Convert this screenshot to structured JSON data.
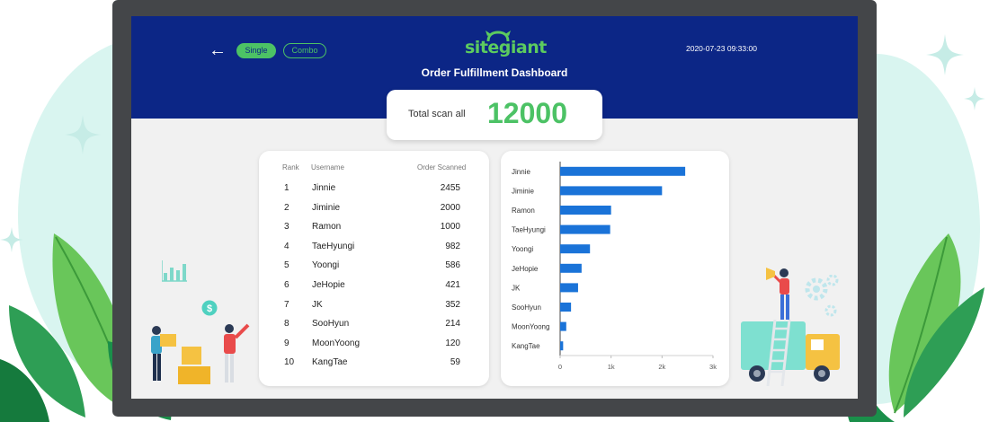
{
  "header": {
    "back_icon": "arrow-left-icon",
    "modes": [
      {
        "label": "Single",
        "active": true
      },
      {
        "label": "Combo",
        "active": false
      }
    ],
    "logo_text": "sitegiant",
    "title": "Order Fulfillment Dashboard",
    "datetime": "2020-07-23 09:33:00"
  },
  "summary": {
    "label": "Total scan all",
    "value": "12000"
  },
  "table": {
    "columns": [
      "Rank",
      "Username",
      "Order Scanned"
    ],
    "rows": [
      {
        "rank": "1",
        "username": "Jinnie",
        "count": "2455"
      },
      {
        "rank": "2",
        "username": "Jiminie",
        "count": "2000"
      },
      {
        "rank": "3",
        "username": "Ramon",
        "count": "1000"
      },
      {
        "rank": "4",
        "username": "TaeHyungi",
        "count": "982"
      },
      {
        "rank": "5",
        "username": "Yoongi",
        "count": "586"
      },
      {
        "rank": "6",
        "username": "JeHopie",
        "count": "421"
      },
      {
        "rank": "7",
        "username": "JK",
        "count": "352"
      },
      {
        "rank": "8",
        "username": "SooHyun",
        "count": "214"
      },
      {
        "rank": "9",
        "username": "MoonYoong",
        "count": "120"
      },
      {
        "rank": "10",
        "username": "KangTae",
        "count": "59"
      }
    ]
  },
  "chart_data": {
    "type": "bar",
    "orientation": "horizontal",
    "categories": [
      "Jinnie",
      "Jiminie",
      "Ramon",
      "TaeHyungi",
      "Yoongi",
      "JeHopie",
      "JK",
      "SooHyun",
      "MoonYoong",
      "KangTae"
    ],
    "values": [
      2455,
      2000,
      1000,
      982,
      586,
      421,
      352,
      214,
      120,
      59
    ],
    "xlim": [
      0,
      3000
    ],
    "xticks": [
      "0",
      "1k",
      "2k",
      "3k"
    ],
    "xtick_values": [
      0,
      1000,
      2000,
      3000
    ],
    "grid": false,
    "bar_color": "#1a73d8"
  },
  "colors": {
    "header_bg": "#0c2686",
    "accent_green": "#4cc265",
    "screen_bg": "#f1f1f1",
    "frame": "#444649"
  }
}
